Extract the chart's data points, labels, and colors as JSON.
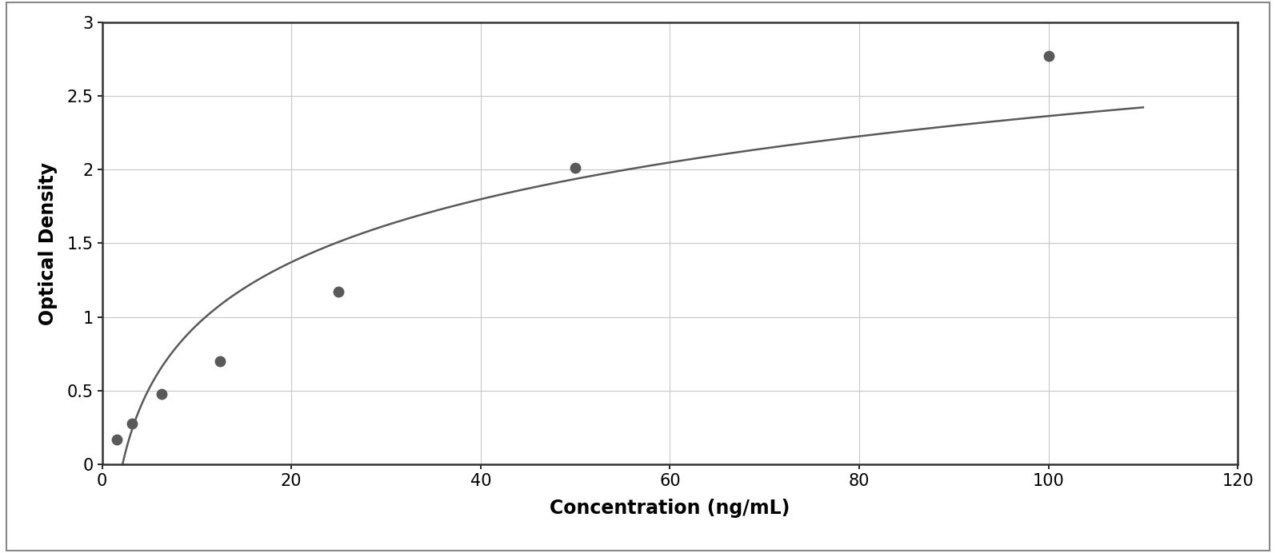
{
  "x_data": [
    1.5625,
    3.125,
    6.25,
    12.5,
    25,
    50,
    100
  ],
  "y_data": [
    0.17,
    0.28,
    0.48,
    0.7,
    1.17,
    2.01,
    2.77
  ],
  "xlabel": "Concentration (ng/mL)",
  "ylabel": "Optical Density",
  "xlim": [
    0,
    120
  ],
  "ylim": [
    0,
    3
  ],
  "xticks": [
    0,
    20,
    40,
    60,
    80,
    100,
    120
  ],
  "yticks": [
    0,
    0.5,
    1.0,
    1.5,
    2.0,
    2.5,
    3.0
  ],
  "point_color": "#595959",
  "line_color": "#595959",
  "bg_color": "#ffffff",
  "outer_bg": "#ffffff",
  "grid_color": "#c8c8c8",
  "marker_size": 10,
  "line_width": 1.8,
  "xlabel_fontsize": 17,
  "ylabel_fontsize": 17,
  "tick_fontsize": 15,
  "xlabel_fontweight": "bold",
  "ylabel_fontweight": "bold",
  "border_color": "#888888",
  "border_linewidth": 1.5
}
